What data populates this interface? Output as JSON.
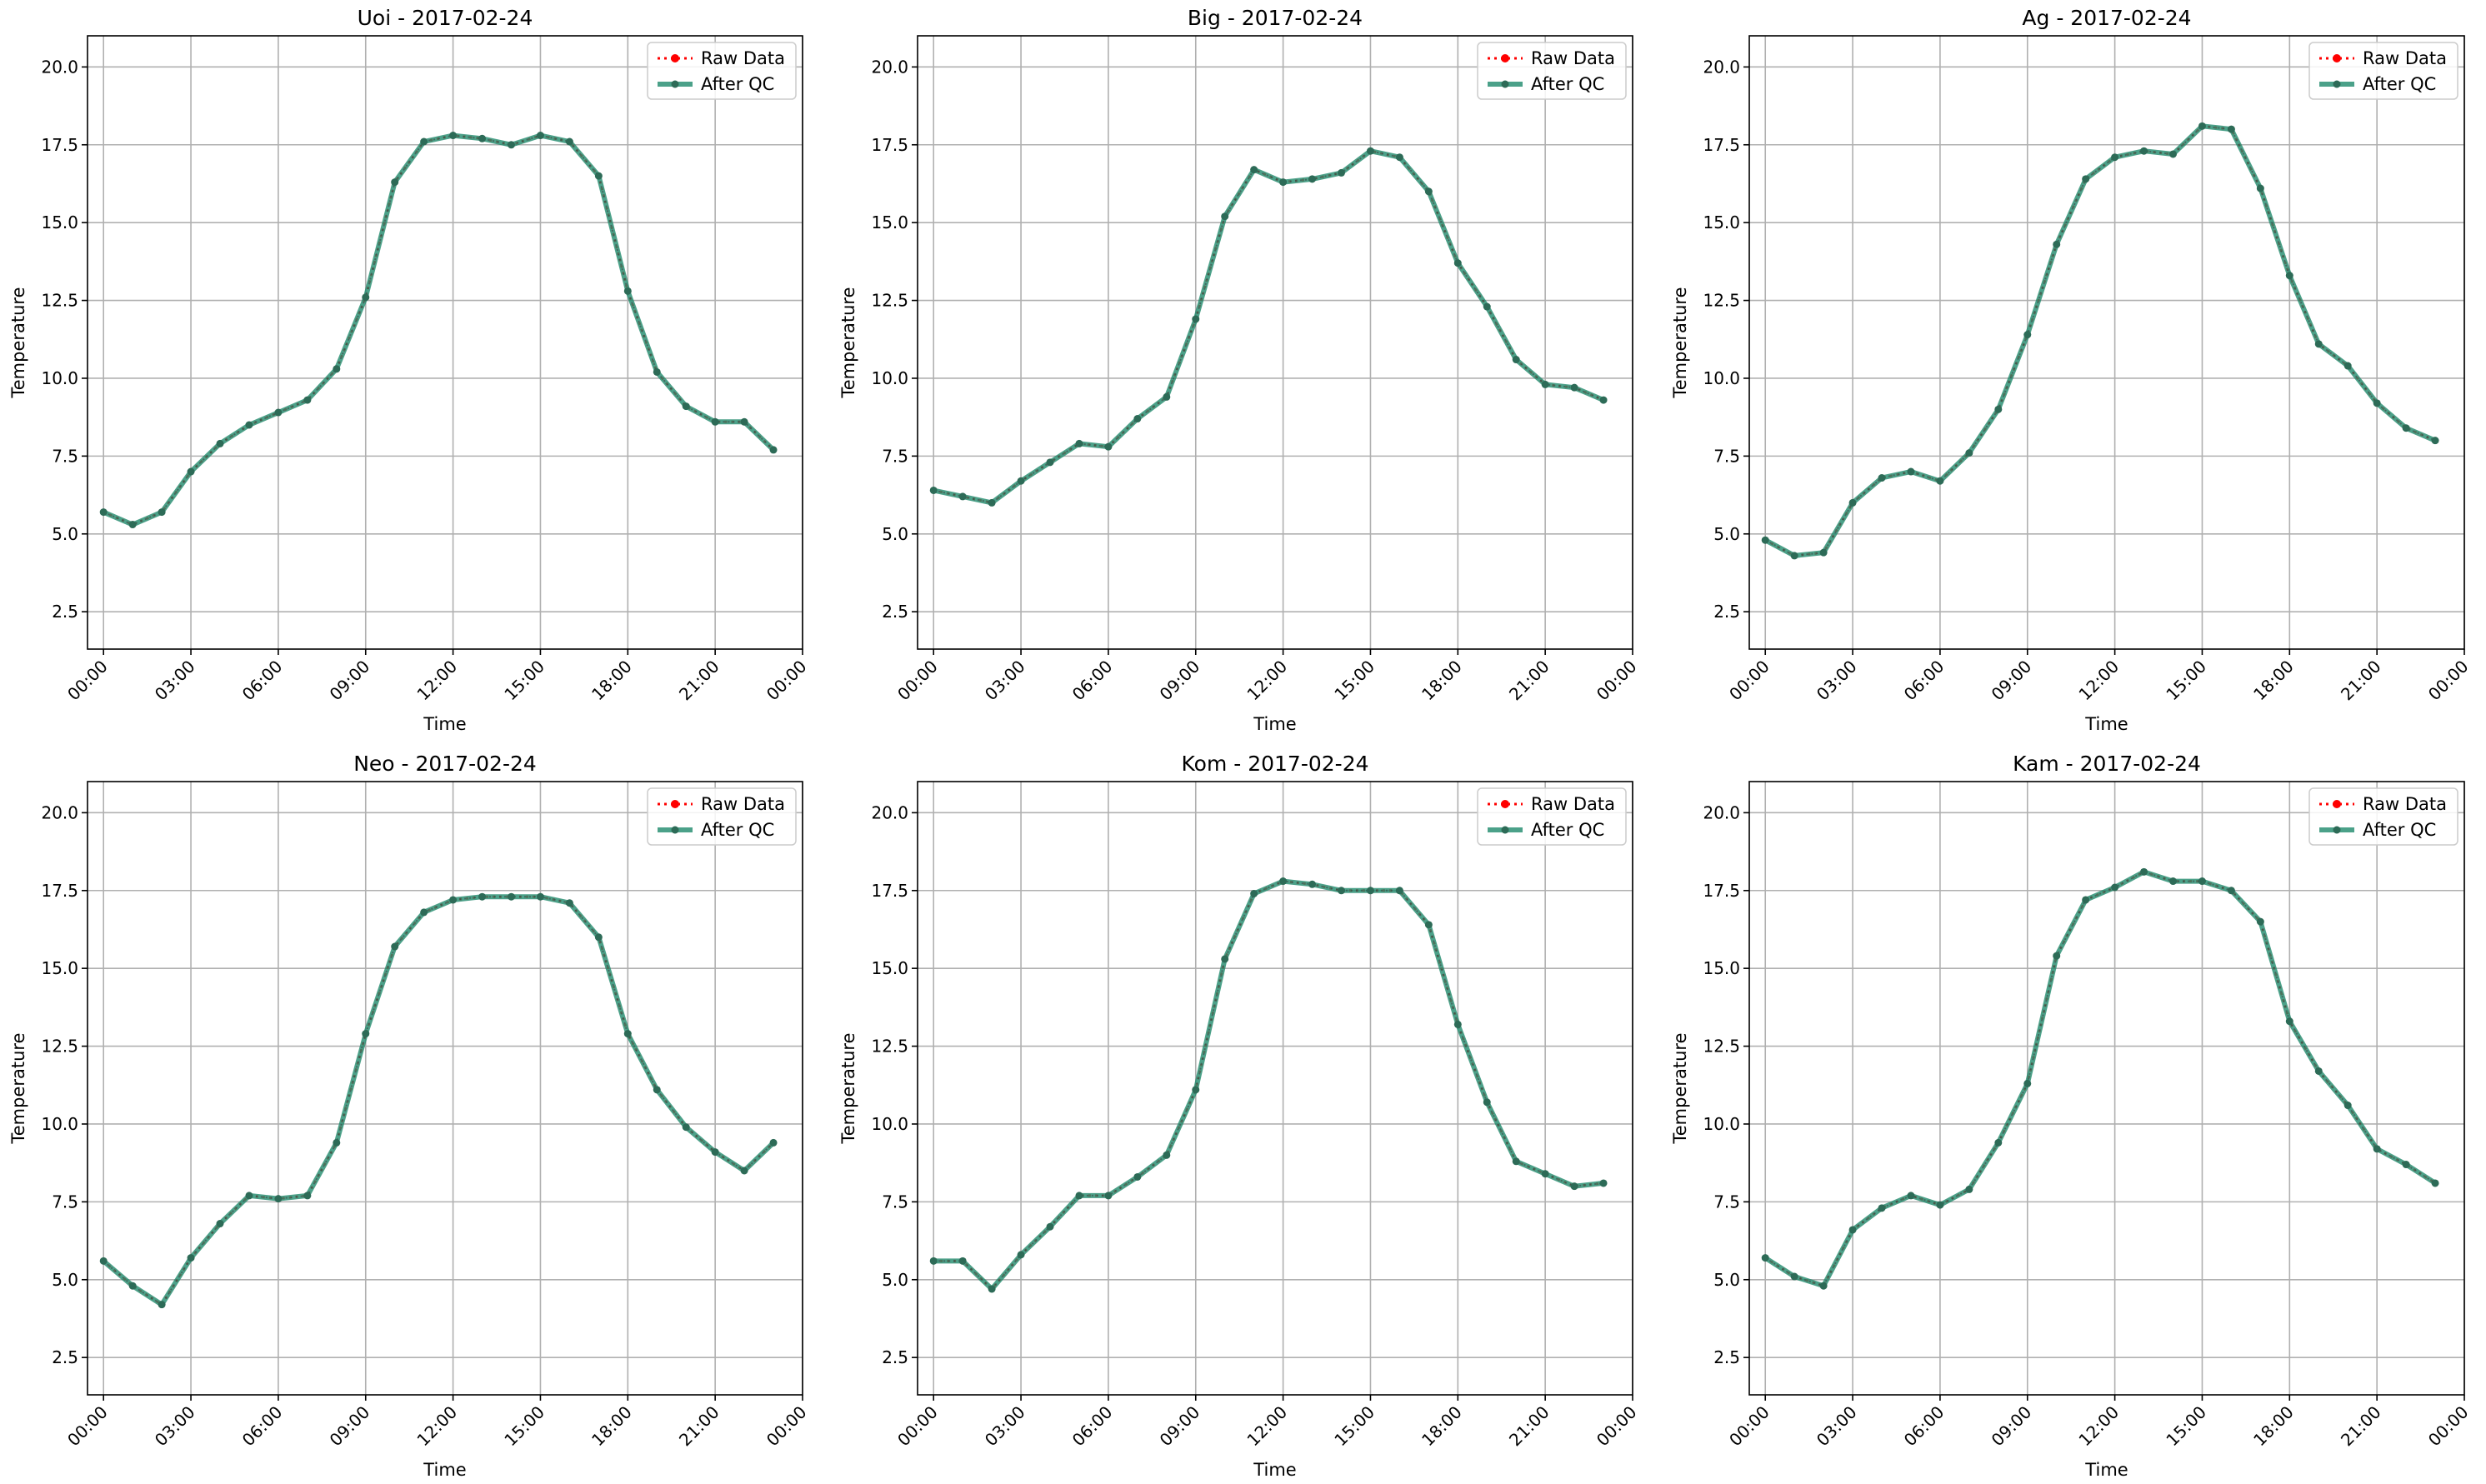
{
  "chart_data": [
    {
      "type": "line",
      "title": "Uoi - 2017-02-24",
      "xlabel": "Time",
      "ylabel": "Temperature",
      "xlim": [
        -0.55,
        24.0
      ],
      "ylim": [
        1.3,
        21.0
      ],
      "xticks": [
        0,
        3,
        6,
        9,
        12,
        15,
        18,
        21,
        24
      ],
      "xtick_labels": [
        "00:00",
        "03:00",
        "06:00",
        "09:00",
        "12:00",
        "15:00",
        "18:00",
        "21:00",
        "00:00"
      ],
      "yticks": [
        2.5,
        5.0,
        7.5,
        10.0,
        12.5,
        15.0,
        17.5,
        20.0
      ],
      "ytick_labels": [
        "2.5",
        "5.0",
        "7.5",
        "10.0",
        "12.5",
        "15.0",
        "17.5",
        "20.0"
      ],
      "grid": true,
      "legend_position": "top-right",
      "x": [
        0,
        1,
        2,
        3,
        4,
        5,
        6,
        7,
        8,
        9,
        10,
        11,
        12,
        13,
        14,
        15,
        16,
        17,
        18,
        19,
        20,
        21,
        22,
        23
      ],
      "series": [
        {
          "name": "Raw Data",
          "values": [
            5.7,
            5.3,
            5.7,
            7.0,
            7.9,
            8.5,
            8.9,
            9.3,
            10.3,
            12.6,
            16.3,
            17.6,
            17.8,
            17.7,
            17.5,
            17.8,
            17.6,
            16.5,
            12.8,
            10.2,
            9.1,
            8.6,
            8.6,
            7.7
          ]
        },
        {
          "name": "After QC",
          "values": [
            5.7,
            5.3,
            5.7,
            7.0,
            7.9,
            8.5,
            8.9,
            9.3,
            10.3,
            12.6,
            16.3,
            17.6,
            17.8,
            17.7,
            17.5,
            17.8,
            17.6,
            16.5,
            12.8,
            10.2,
            9.1,
            8.6,
            8.6,
            7.7
          ]
        }
      ]
    },
    {
      "type": "line",
      "title": "Big - 2017-02-24",
      "xlabel": "Time",
      "ylabel": "Temperature",
      "xlim": [
        -0.55,
        24.0
      ],
      "ylim": [
        1.3,
        21.0
      ],
      "xticks": [
        0,
        3,
        6,
        9,
        12,
        15,
        18,
        21,
        24
      ],
      "xtick_labels": [
        "00:00",
        "03:00",
        "06:00",
        "09:00",
        "12:00",
        "15:00",
        "18:00",
        "21:00",
        "00:00"
      ],
      "yticks": [
        2.5,
        5.0,
        7.5,
        10.0,
        12.5,
        15.0,
        17.5,
        20.0
      ],
      "ytick_labels": [
        "2.5",
        "5.0",
        "7.5",
        "10.0",
        "12.5",
        "15.0",
        "17.5",
        "20.0"
      ],
      "grid": true,
      "legend_position": "top-right",
      "x": [
        0,
        1,
        2,
        3,
        4,
        5,
        6,
        7,
        8,
        9,
        10,
        11,
        12,
        13,
        14,
        15,
        16,
        17,
        18,
        19,
        20,
        21,
        22,
        23
      ],
      "series": [
        {
          "name": "Raw Data",
          "values": [
            6.4,
            6.2,
            6.0,
            6.7,
            7.3,
            7.9,
            7.8,
            8.7,
            9.4,
            11.9,
            15.2,
            16.7,
            16.3,
            16.4,
            16.6,
            17.3,
            17.1,
            16.0,
            13.7,
            12.3,
            10.6,
            9.8,
            9.7,
            9.3
          ]
        },
        {
          "name": "After QC",
          "values": [
            6.4,
            6.2,
            6.0,
            6.7,
            7.3,
            7.9,
            7.8,
            8.7,
            9.4,
            11.9,
            15.2,
            16.7,
            16.3,
            16.4,
            16.6,
            17.3,
            17.1,
            16.0,
            13.7,
            12.3,
            10.6,
            9.8,
            9.7,
            9.3
          ]
        }
      ]
    },
    {
      "type": "line",
      "title": "Ag - 2017-02-24",
      "xlabel": "Time",
      "ylabel": "Temperature",
      "xlim": [
        -0.55,
        24.0
      ],
      "ylim": [
        1.3,
        21.0
      ],
      "xticks": [
        0,
        3,
        6,
        9,
        12,
        15,
        18,
        21,
        24
      ],
      "xtick_labels": [
        "00:00",
        "03:00",
        "06:00",
        "09:00",
        "12:00",
        "15:00",
        "18:00",
        "21:00",
        "00:00"
      ],
      "yticks": [
        2.5,
        5.0,
        7.5,
        10.0,
        12.5,
        15.0,
        17.5,
        20.0
      ],
      "ytick_labels": [
        "2.5",
        "5.0",
        "7.5",
        "10.0",
        "12.5",
        "15.0",
        "17.5",
        "20.0"
      ],
      "grid": true,
      "legend_position": "top-right",
      "x": [
        0,
        1,
        2,
        3,
        4,
        5,
        6,
        7,
        8,
        9,
        10,
        11,
        12,
        13,
        14,
        15,
        16,
        17,
        18,
        19,
        20,
        21,
        22,
        23
      ],
      "series": [
        {
          "name": "Raw Data",
          "values": [
            4.8,
            4.3,
            4.4,
            6.0,
            6.8,
            7.0,
            6.7,
            7.6,
            9.0,
            11.4,
            14.3,
            16.4,
            17.1,
            17.3,
            17.2,
            18.1,
            18.0,
            16.1,
            13.3,
            11.1,
            10.4,
            9.2,
            8.4,
            8.0
          ]
        },
        {
          "name": "After QC",
          "values": [
            4.8,
            4.3,
            4.4,
            6.0,
            6.8,
            7.0,
            6.7,
            7.6,
            9.0,
            11.4,
            14.3,
            16.4,
            17.1,
            17.3,
            17.2,
            18.1,
            18.0,
            16.1,
            13.3,
            11.1,
            10.4,
            9.2,
            8.4,
            8.0
          ]
        }
      ]
    },
    {
      "type": "line",
      "title": "Neo - 2017-02-24",
      "xlabel": "Time",
      "ylabel": "Temperature",
      "xlim": [
        -0.55,
        24.0
      ],
      "ylim": [
        1.3,
        21.0
      ],
      "xticks": [
        0,
        3,
        6,
        9,
        12,
        15,
        18,
        21,
        24
      ],
      "xtick_labels": [
        "00:00",
        "03:00",
        "06:00",
        "09:00",
        "12:00",
        "15:00",
        "18:00",
        "21:00",
        "00:00"
      ],
      "yticks": [
        2.5,
        5.0,
        7.5,
        10.0,
        12.5,
        15.0,
        17.5,
        20.0
      ],
      "ytick_labels": [
        "2.5",
        "5.0",
        "7.5",
        "10.0",
        "12.5",
        "15.0",
        "17.5",
        "20.0"
      ],
      "grid": true,
      "legend_position": "top-right",
      "x": [
        0,
        1,
        2,
        3,
        4,
        5,
        6,
        7,
        8,
        9,
        10,
        11,
        12,
        13,
        14,
        15,
        16,
        17,
        18,
        19,
        20,
        21,
        22,
        23
      ],
      "series": [
        {
          "name": "Raw Data",
          "values": [
            5.6,
            4.8,
            4.2,
            5.7,
            6.8,
            7.7,
            7.6,
            7.7,
            9.4,
            12.9,
            15.7,
            16.8,
            17.2,
            17.3,
            17.3,
            17.3,
            17.1,
            16.0,
            12.9,
            11.1,
            9.9,
            9.1,
            8.5,
            9.4
          ]
        },
        {
          "name": "After QC",
          "values": [
            5.6,
            4.8,
            4.2,
            5.7,
            6.8,
            7.7,
            7.6,
            7.7,
            9.4,
            12.9,
            15.7,
            16.8,
            17.2,
            17.3,
            17.3,
            17.3,
            17.1,
            16.0,
            12.9,
            11.1,
            9.9,
            9.1,
            8.5,
            9.4
          ]
        }
      ]
    },
    {
      "type": "line",
      "title": "Kom - 2017-02-24",
      "xlabel": "Time",
      "ylabel": "Temperature",
      "xlim": [
        -0.55,
        24.0
      ],
      "ylim": [
        1.3,
        21.0
      ],
      "xticks": [
        0,
        3,
        6,
        9,
        12,
        15,
        18,
        21,
        24
      ],
      "xtick_labels": [
        "00:00",
        "03:00",
        "06:00",
        "09:00",
        "12:00",
        "15:00",
        "18:00",
        "21:00",
        "00:00"
      ],
      "yticks": [
        2.5,
        5.0,
        7.5,
        10.0,
        12.5,
        15.0,
        17.5,
        20.0
      ],
      "ytick_labels": [
        "2.5",
        "5.0",
        "7.5",
        "10.0",
        "12.5",
        "15.0",
        "17.5",
        "20.0"
      ],
      "grid": true,
      "legend_position": "top-right",
      "x": [
        0,
        1,
        2,
        3,
        4,
        5,
        6,
        7,
        8,
        9,
        10,
        11,
        12,
        13,
        14,
        15,
        16,
        17,
        18,
        19,
        20,
        21,
        22,
        23
      ],
      "series": [
        {
          "name": "Raw Data",
          "values": [
            5.6,
            5.6,
            4.7,
            5.8,
            6.7,
            7.7,
            7.7,
            8.3,
            9.0,
            11.1,
            15.3,
            17.4,
            17.8,
            17.7,
            17.5,
            17.5,
            17.5,
            16.4,
            13.2,
            10.7,
            8.8,
            8.4,
            8.0,
            8.1
          ]
        },
        {
          "name": "After QC",
          "values": [
            5.6,
            5.6,
            4.7,
            5.8,
            6.7,
            7.7,
            7.7,
            8.3,
            9.0,
            11.1,
            15.3,
            17.4,
            17.8,
            17.7,
            17.5,
            17.5,
            17.5,
            16.4,
            13.2,
            10.7,
            8.8,
            8.4,
            8.0,
            8.1
          ]
        }
      ]
    },
    {
      "type": "line",
      "title": "Kam - 2017-02-24",
      "xlabel": "Time",
      "ylabel": "Temperature",
      "xlim": [
        -0.55,
        24.0
      ],
      "ylim": [
        1.3,
        21.0
      ],
      "xticks": [
        0,
        3,
        6,
        9,
        12,
        15,
        18,
        21,
        24
      ],
      "xtick_labels": [
        "00:00",
        "03:00",
        "06:00",
        "09:00",
        "12:00",
        "15:00",
        "18:00",
        "21:00",
        "00:00"
      ],
      "yticks": [
        2.5,
        5.0,
        7.5,
        10.0,
        12.5,
        15.0,
        17.5,
        20.0
      ],
      "ytick_labels": [
        "2.5",
        "5.0",
        "7.5",
        "10.0",
        "12.5",
        "15.0",
        "17.5",
        "20.0"
      ],
      "grid": true,
      "legend_position": "top-right",
      "x": [
        0,
        1,
        2,
        3,
        4,
        5,
        6,
        7,
        8,
        9,
        10,
        11,
        12,
        13,
        14,
        15,
        16,
        17,
        18,
        19,
        20,
        21,
        22,
        23
      ],
      "series": [
        {
          "name": "Raw Data",
          "values": [
            5.7,
            5.1,
            4.8,
            6.6,
            7.3,
            7.7,
            7.4,
            7.9,
            9.4,
            11.3,
            15.4,
            17.2,
            17.6,
            18.1,
            17.8,
            17.8,
            17.5,
            16.5,
            13.3,
            11.7,
            10.6,
            9.2,
            8.7,
            8.1
          ]
        },
        {
          "name": "After QC",
          "values": [
            5.7,
            5.1,
            4.8,
            6.6,
            7.3,
            7.7,
            7.4,
            7.9,
            9.4,
            11.3,
            15.4,
            17.2,
            17.6,
            18.1,
            17.8,
            17.8,
            17.5,
            16.5,
            13.3,
            11.7,
            10.6,
            9.2,
            8.7,
            8.1
          ]
        }
      ]
    }
  ],
  "style": {
    "raw_color": "#ff0000",
    "qc_color": "#1f8a6c",
    "grid_color": "#b0b0b0",
    "axis_color": "#000000"
  }
}
